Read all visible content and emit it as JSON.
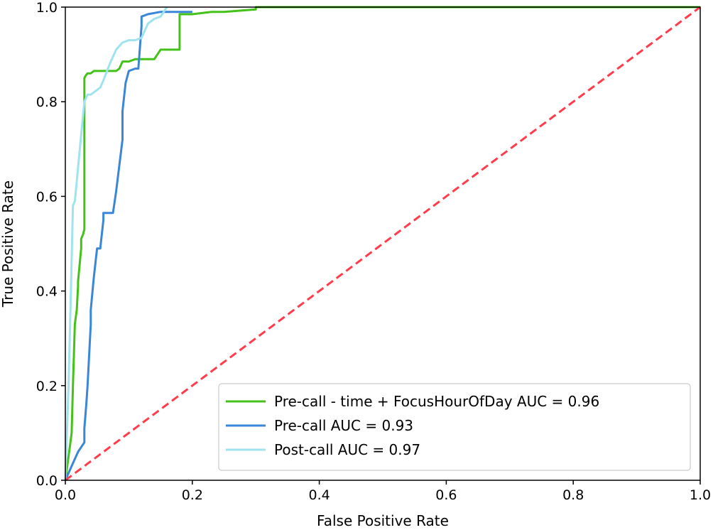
{
  "chart_data": {
    "type": "line",
    "title": "",
    "xlabel": "False Positive Rate",
    "ylabel": "True Positive Rate",
    "xlim": [
      0,
      1
    ],
    "ylim": [
      0,
      1
    ],
    "xticks": [
      "0.0",
      "0.2",
      "0.4",
      "0.6",
      "0.8",
      "1.0"
    ],
    "yticks": [
      "0.0",
      "0.2",
      "0.4",
      "0.6",
      "0.8",
      "1.0"
    ],
    "grid": false,
    "legend_position": "lower-right",
    "series": [
      {
        "name": "Pre-call - time + FocusHourOfDay AUC = 0.96",
        "color": "#44c21a",
        "x": [
          0.0,
          0.005,
          0.01,
          0.012,
          0.015,
          0.018,
          0.02,
          0.02,
          0.025,
          0.025,
          0.028,
          0.03,
          0.03,
          0.03,
          0.032,
          0.035,
          0.04,
          0.045,
          0.05,
          0.06,
          0.07,
          0.08,
          0.085,
          0.09,
          0.1,
          0.11,
          0.12,
          0.13,
          0.14,
          0.15,
          0.16,
          0.18,
          0.18,
          0.2,
          0.23,
          0.25,
          0.3,
          0.3,
          0.5,
          1.0
        ],
        "y": [
          0.0,
          0.05,
          0.1,
          0.2,
          0.33,
          0.36,
          0.41,
          0.42,
          0.49,
          0.51,
          0.52,
          0.53,
          0.6,
          0.85,
          0.855,
          0.86,
          0.86,
          0.865,
          0.865,
          0.865,
          0.865,
          0.865,
          0.87,
          0.885,
          0.885,
          0.89,
          0.89,
          0.89,
          0.89,
          0.91,
          0.91,
          0.91,
          0.985,
          0.985,
          0.99,
          0.99,
          0.995,
          1.0,
          1.0,
          1.0
        ]
      },
      {
        "name": "Pre-call AUC = 0.93",
        "color": "#3a86d8",
        "x": [
          0.0,
          0.01,
          0.02,
          0.025,
          0.03,
          0.03,
          0.033,
          0.035,
          0.04,
          0.04,
          0.045,
          0.05,
          0.055,
          0.06,
          0.06,
          0.065,
          0.07,
          0.075,
          0.08,
          0.09,
          0.09,
          0.095,
          0.1,
          0.11,
          0.115,
          0.12,
          0.12,
          0.13,
          0.15,
          0.2
        ],
        "y": [
          0.0,
          0.03,
          0.06,
          0.07,
          0.08,
          0.11,
          0.16,
          0.2,
          0.33,
          0.36,
          0.43,
          0.49,
          0.49,
          0.55,
          0.565,
          0.565,
          0.565,
          0.565,
          0.61,
          0.72,
          0.78,
          0.84,
          0.865,
          0.87,
          0.87,
          0.96,
          0.98,
          0.985,
          0.99,
          0.99
        ]
      },
      {
        "name": "Post-call AUC = 0.97",
        "color": "#9fe3ef",
        "x": [
          0.0,
          0.005,
          0.008,
          0.012,
          0.015,
          0.02,
          0.025,
          0.03,
          0.035,
          0.04,
          0.05,
          0.055,
          0.06,
          0.07,
          0.08,
          0.09,
          0.1,
          0.11,
          0.12,
          0.13,
          0.135,
          0.14,
          0.15,
          0.155,
          0.16
        ],
        "y": [
          0.0,
          0.2,
          0.36,
          0.58,
          0.59,
          0.66,
          0.73,
          0.8,
          0.815,
          0.815,
          0.825,
          0.83,
          0.845,
          0.88,
          0.91,
          0.925,
          0.93,
          0.93,
          0.935,
          0.965,
          0.97,
          0.975,
          0.98,
          0.99,
          1.0
        ]
      },
      {
        "name": "",
        "color": "#ff3c4b",
        "dashed": true,
        "x": [
          0,
          1
        ],
        "y": [
          0,
          1
        ]
      }
    ]
  }
}
